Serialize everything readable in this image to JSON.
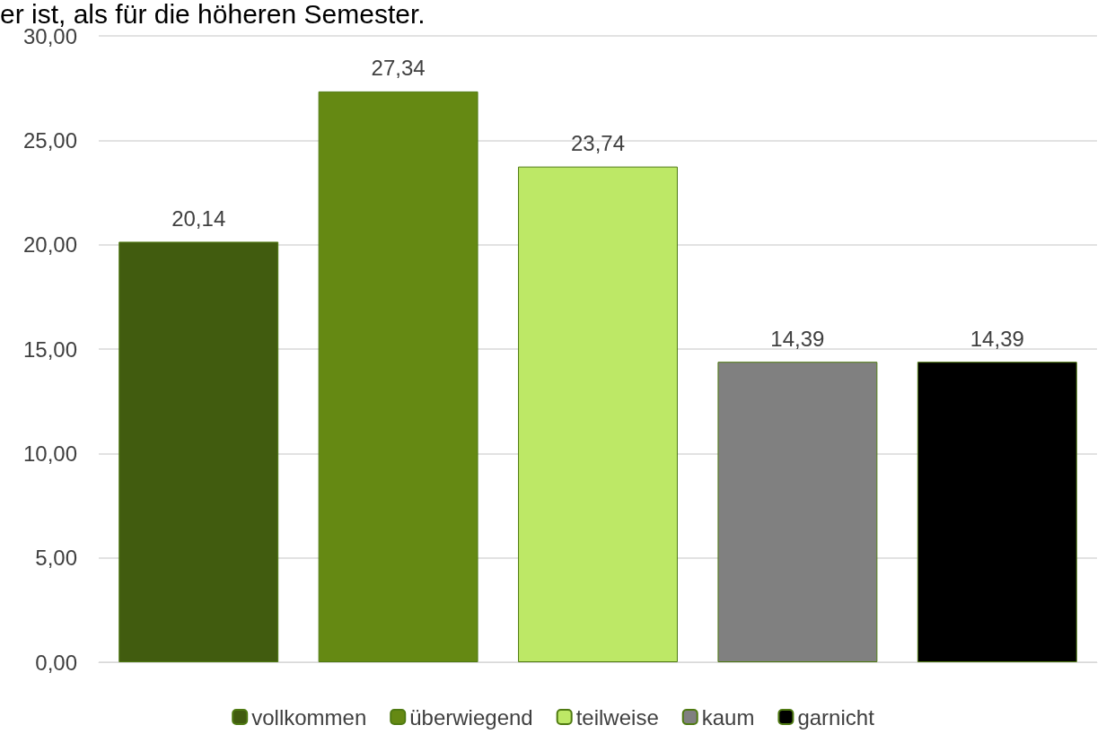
{
  "chart_data": {
    "type": "bar",
    "annotations": [
      "er ist, als für die höheren Semester."
    ],
    "categories": [
      null,
      null,
      null,
      null,
      null
    ],
    "series": [
      {
        "name": "vollkommen",
        "color": "#415c0f",
        "values": [
          20.14,
          null,
          null,
          null,
          null
        ],
        "value_labels": [
          "20,14",
          null,
          null,
          null,
          null
        ]
      },
      {
        "name": "überwiegend",
        "color": "#658913",
        "values": [
          null,
          27.34,
          null,
          null,
          null
        ],
        "value_labels": [
          null,
          "27,34",
          null,
          null,
          null
        ]
      },
      {
        "name": "teilweise",
        "color": "#bde866",
        "values": [
          null,
          null,
          23.74,
          null,
          null
        ],
        "value_labels": [
          null,
          null,
          "23,74",
          null,
          null
        ]
      },
      {
        "name": "kaum",
        "color": "#808080",
        "values": [
          null,
          null,
          null,
          14.39,
          null
        ],
        "value_labels": [
          null,
          null,
          null,
          "14,39",
          null
        ]
      },
      {
        "name": "garnicht",
        "color": "#000000",
        "values": [
          null,
          null,
          null,
          null,
          14.39
        ],
        "value_labels": [
          null,
          null,
          null,
          null,
          "14,39"
        ]
      }
    ],
    "ylim": [
      0,
      30
    ],
    "yticks": [
      {
        "value": 0,
        "label": "0,00"
      },
      {
        "value": 5,
        "label": "5,00"
      },
      {
        "value": 10,
        "label": "10,00"
      },
      {
        "value": 15,
        "label": "15,00"
      },
      {
        "value": 20,
        "label": "20,00"
      },
      {
        "value": 25,
        "label": "25,00"
      },
      {
        "value": 30,
        "label": "30,00"
      }
    ],
    "grid": "y",
    "legend": "bottom"
  }
}
